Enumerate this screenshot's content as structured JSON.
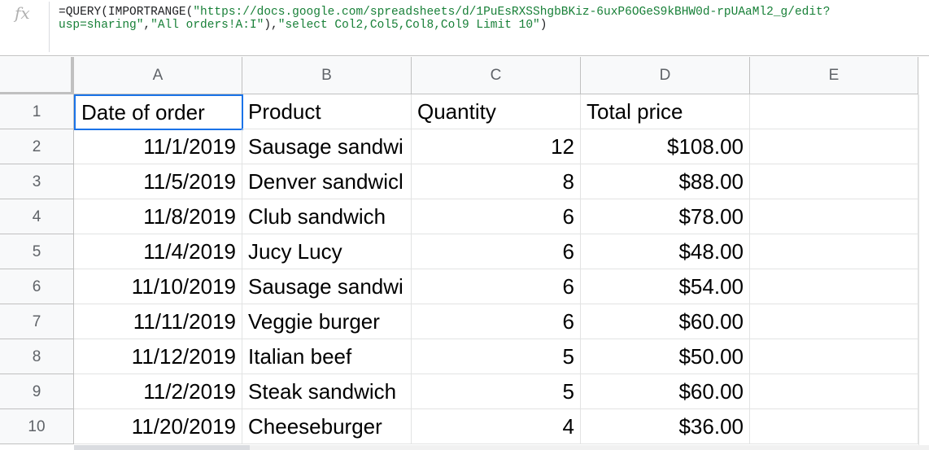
{
  "formula_bar": {
    "icon": "fx",
    "line1_prefix": "=QUERY(IMPORTRANGE(",
    "line1_string": "\"https://docs.google.com/spreadsheets/d/1PuEsRXSShgbBKiz-6uxP6OGeS9kBHW0d-rpUAaMl2_g/edit?",
    "line2_string_end": "usp=sharing\"",
    "line2_sep1": ",",
    "line2_string2": "\"All orders!A:I\"",
    "line2_sep2": "),",
    "line2_string3": "\"select Col2,Col5,Col8,Col9 Limit 10\"",
    "line2_suffix": ")"
  },
  "columns": [
    "A",
    "B",
    "C",
    "D",
    "E"
  ],
  "rows": [
    "1",
    "2",
    "3",
    "4",
    "5",
    "6",
    "7",
    "8",
    "9",
    "10"
  ],
  "header_row": {
    "a": "Date of order",
    "b": "Product",
    "c": "Quantity",
    "d": "Total price",
    "e": ""
  },
  "data_rows": [
    {
      "a": "11/1/2019",
      "b": "Sausage sandwi",
      "c": "12",
      "d": "$108.00"
    },
    {
      "a": "11/5/2019",
      "b": "Denver sandwicl",
      "c": "8",
      "d": "$88.00"
    },
    {
      "a": "11/8/2019",
      "b": "Club sandwich",
      "c": "6",
      "d": "$78.00"
    },
    {
      "a": "11/4/2019",
      "b": "Jucy Lucy",
      "c": "6",
      "d": "$48.00"
    },
    {
      "a": "11/10/2019",
      "b": "Sausage sandwi",
      "c": "6",
      "d": "$54.00"
    },
    {
      "a": "11/11/2019",
      "b": "Veggie burger",
      "c": "6",
      "d": "$60.00"
    },
    {
      "a": "11/12/2019",
      "b": "Italian beef",
      "c": "5",
      "d": "$50.00"
    },
    {
      "a": "11/2/2019",
      "b": "Steak sandwich",
      "c": "5",
      "d": "$60.00"
    },
    {
      "a": "11/20/2019",
      "b": "Cheeseburger",
      "c": "4",
      "d": "$36.00"
    }
  ],
  "colors": {
    "selection": "#1a73e8",
    "string": "#188038"
  }
}
